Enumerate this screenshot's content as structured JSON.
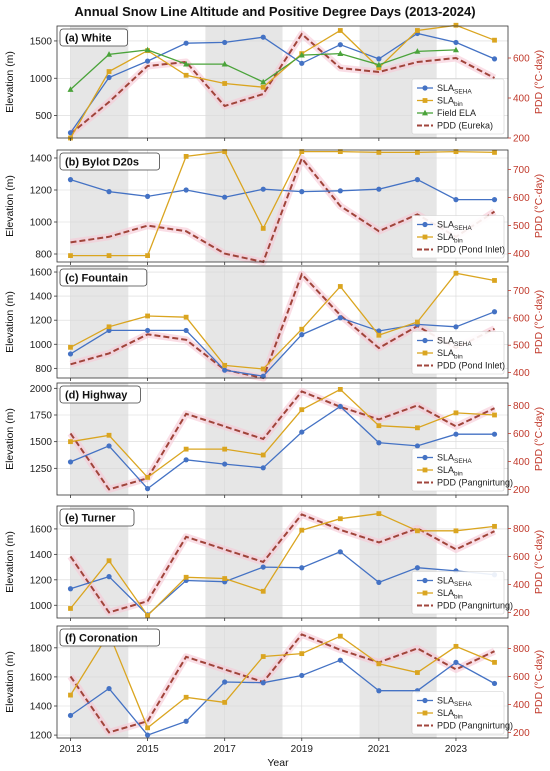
{
  "chart_data": {
    "type": "line",
    "title": "Annual Snow Line Altitude and Positive Degree Days (2013-2024)",
    "xlabel": "Year",
    "ylabel": "Elevation (m)",
    "y2label": "PDD (°C·day)",
    "x": [
      2013,
      2014,
      2015,
      2016,
      2017,
      2018,
      2019,
      2020,
      2021,
      2022,
      2023,
      2024
    ],
    "x_ticks": [
      "2013",
      "2015",
      "2017",
      "2019",
      "2021",
      "2023"
    ],
    "shaded_spans": [
      [
        2013,
        2014.5
      ],
      [
        2016.5,
        2018.5
      ],
      [
        2020.5,
        2022.5
      ]
    ],
    "colors": {
      "sla_seha": "#4472c4",
      "sla_bin": "#daa520",
      "field_ela": "#4aa33a",
      "pdd": "#a0443a",
      "pdd_glow": "#f6c8d6",
      "shade": "#e6e6e6"
    },
    "panels": [
      {
        "title": "(a) White",
        "ylim": [
          200,
          1700
        ],
        "yticks": [
          500,
          1000,
          1500
        ],
        "y2lim": [
          200,
          760
        ],
        "y2ticks": [
          200,
          400,
          600
        ],
        "series": [
          {
            "key": "sla_seha",
            "name": "SLA_SEHA",
            "marker": "circle",
            "values": [
              270,
              1010,
              1230,
              1470,
              1480,
              1550,
              1200,
              1450,
              1260,
              1600,
              1480,
              1260
            ]
          },
          {
            "key": "sla_bin",
            "name": "SLA_bin",
            "marker": "square",
            "values": [
              200,
              1090,
              1370,
              1040,
              930,
              880,
              1330,
              1640,
              1140,
              1640,
              1710,
              1510
            ]
          },
          {
            "key": "field_ela",
            "name": "Field ELA",
            "marker": "triangle",
            "values": [
              850,
              1320,
              1380,
              1190,
              1190,
              950,
              1310,
              1330,
              1180,
              1360,
              1380,
              null
            ]
          }
        ],
        "pdd": {
          "name": "PDD (Eureka)",
          "values": [
            220,
            380,
            560,
            580,
            360,
            420,
            720,
            550,
            530,
            580,
            600,
            500
          ]
        }
      },
      {
        "title": "(b) Bylot D20s",
        "ylim": [
          750,
          1450
        ],
        "yticks": [
          800,
          1000,
          1200,
          1400
        ],
        "y2lim": [
          370,
          770
        ],
        "y2ticks": [
          400,
          500,
          600,
          700
        ],
        "series": [
          {
            "key": "sla_seha",
            "name": "SLA_SEHA",
            "marker": "circle",
            "values": [
              1265,
              1190,
              1160,
              1200,
              1155,
              1205,
              1190,
              1195,
              1205,
              1265,
              1140,
              1140
            ]
          },
          {
            "key": "sla_bin",
            "name": "SLA_bin",
            "marker": "square",
            "values": [
              790,
              790,
              790,
              1410,
              1440,
              960,
              1440,
              1440,
              1435,
              1435,
              1440,
              1435
            ]
          }
        ],
        "pdd": {
          "name": "PDD (Pond Inlet)",
          "values": [
            440,
            460,
            500,
            480,
            400,
            370,
            740,
            570,
            480,
            540,
            460,
            550
          ]
        }
      },
      {
        "title": "(c) Fountain",
        "ylim": [
          720,
          1650
        ],
        "yticks": [
          800,
          1000,
          1200,
          1400,
          1600
        ],
        "y2lim": [
          380,
          790
        ],
        "y2ticks": [
          400,
          500,
          600,
          700
        ],
        "series": [
          {
            "key": "sla_seha",
            "name": "SLA_SEHA",
            "marker": "circle",
            "values": [
              920,
              1115,
              1115,
              1115,
              785,
              735,
              1080,
              1220,
              1110,
              1165,
              1145,
              1270
            ]
          },
          {
            "key": "sla_bin",
            "name": "SLA_bin",
            "marker": "square",
            "values": [
              975,
              1145,
              1235,
              1225,
              825,
              795,
              1125,
              1480,
              1075,
              1185,
              1590,
              1530
            ]
          },
          {
            "key": "pdd_dummy",
            "name": "",
            "marker": "none",
            "values": []
          }
        ],
        "pdd": {
          "name": "PDD (Pond Inlet)",
          "values": [
            430,
            470,
            540,
            520,
            410,
            380,
            760,
            610,
            490,
            570,
            490,
            560
          ]
        }
      },
      {
        "title": "(d) Highway",
        "ylim": [
          1000,
          2050
        ],
        "yticks": [
          1250,
          1500,
          1750,
          2000
        ],
        "y2lim": [
          160,
          960
        ],
        "y2ticks": [
          200,
          400,
          600,
          800
        ],
        "series": [
          {
            "key": "sla_seha",
            "name": "SLA_SEHA",
            "marker": "circle",
            "values": [
              1310,
              1460,
              1060,
              1330,
              1290,
              1255,
              1590,
              1830,
              1490,
              1460,
              1570,
              1570
            ]
          },
          {
            "key": "sla_bin",
            "name": "SLA_bin",
            "marker": "square",
            "values": [
              1500,
              1560,
              1165,
              1430,
              1430,
              1375,
              1800,
              1990,
              1650,
              1630,
              1770,
              1750
            ]
          }
        ],
        "pdd": {
          "name": "PDD (Pangnirtung)",
          "values": [
            600,
            200,
            280,
            740,
            650,
            560,
            900,
            790,
            700,
            800,
            650,
            780
          ]
        }
      },
      {
        "title": "(e) Turner",
        "ylim": [
          900,
          1780
        ],
        "yticks": [
          1000,
          1200,
          1400,
          1600
        ],
        "y2lim": [
          160,
          960
        ],
        "y2ticks": [
          200,
          400,
          600,
          800
        ],
        "series": [
          {
            "key": "sla_seha",
            "name": "SLA_SEHA",
            "marker": "circle",
            "values": [
              1130,
              1225,
              925,
              1195,
              1185,
              1300,
              1295,
              1420,
              1180,
              1295,
              1270,
              1240
            ]
          },
          {
            "key": "sla_bin",
            "name": "SLA_bin",
            "marker": "square",
            "values": [
              975,
              1350,
              920,
              1220,
              1210,
              1110,
              1590,
              1680,
              1720,
              1585,
              1585,
              1620
            ]
          }
        ],
        "pdd": {
          "name": "PDD (Pangnirtung)",
          "values": [
            600,
            200,
            280,
            740,
            650,
            560,
            900,
            790,
            700,
            800,
            650,
            780
          ]
        }
      },
      {
        "title": "(f) Coronation",
        "ylim": [
          1180,
          1950
        ],
        "yticks": [
          1200,
          1400,
          1600,
          1800
        ],
        "y2lim": [
          160,
          960
        ],
        "y2ticks": [
          200,
          400,
          600,
          800
        ],
        "series": [
          {
            "key": "sla_seha",
            "name": "SLA_SEHA",
            "marker": "circle",
            "values": [
              1335,
              1520,
              1200,
              1295,
              1565,
              1560,
              1610,
              1715,
              1505,
              1505,
              1700,
              1555
            ]
          },
          {
            "key": "sla_bin",
            "name": "SLA_bin",
            "marker": "square",
            "values": [
              1475,
              1900,
              1250,
              1460,
              1425,
              1740,
              1760,
              1880,
              1690,
              1630,
              1810,
              1700
            ]
          }
        ],
        "pdd": {
          "name": "PDD (Pangnirtung)",
          "values": [
            600,
            200,
            280,
            740,
            650,
            560,
            900,
            790,
            700,
            800,
            650,
            780
          ]
        }
      }
    ]
  }
}
